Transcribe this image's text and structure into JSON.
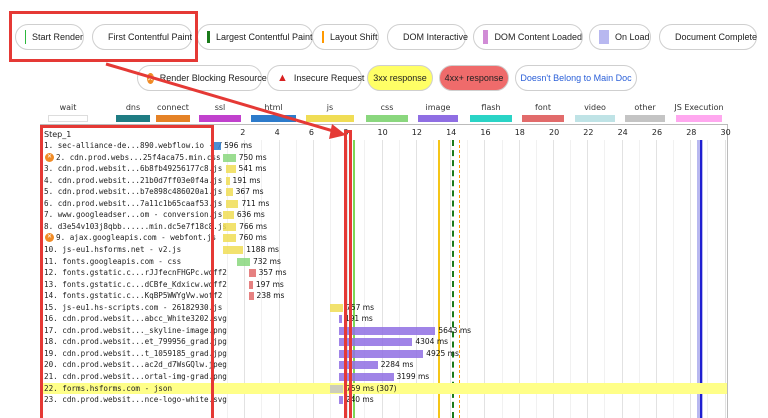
{
  "filters_row1": [
    {
      "label": "Start Render",
      "marker": "bar",
      "color": "#2db83d"
    },
    {
      "label": "First Contentful Paint",
      "marker": "bar",
      "color": "#7ed957"
    },
    {
      "label": "Largest Contentful Paint",
      "marker": "dashed",
      "color": "#1a7a1a"
    },
    {
      "label": "Layout Shift",
      "marker": "dashed",
      "color": "#ff9900"
    },
    {
      "label": "DOM Interactive",
      "marker": "bar",
      "color": "#f5c518"
    },
    {
      "label": "DOM Content Loaded",
      "marker": "box",
      "color": "#d18cd6"
    },
    {
      "label": "On Load",
      "marker": "box",
      "color": "#b8b8f0"
    },
    {
      "label": "Document Complete",
      "marker": "bar",
      "color": "#1f1fd1"
    }
  ],
  "filters_row2": [
    {
      "label": "Render Blocking Resource",
      "marker": "block-icon"
    },
    {
      "label": "Insecure Request",
      "marker": "warning-icon"
    },
    {
      "label": "3xx response",
      "bg": "#ffff66"
    },
    {
      "label": "4xx+ response",
      "bg": "#ef6b6b"
    },
    {
      "label": "Doesn't Belong to Main Doc",
      "color": "#2a5fd8"
    }
  ],
  "legend": [
    {
      "label": "wait",
      "color": "#ffffff"
    },
    {
      "label": "dns",
      "color": "#1f7c83"
    },
    {
      "label": "connect",
      "color": "#e58226"
    },
    {
      "label": "ssl",
      "color": "#c141cd"
    },
    {
      "label": "html",
      "color": "#2d7bcb"
    },
    {
      "label": "js",
      "color": "#f0dd55"
    },
    {
      "label": "css",
      "color": "#8ad77e"
    },
    {
      "label": "image",
      "color": "#8f6ee3"
    },
    {
      "label": "flash",
      "color": "#2ad4c6"
    },
    {
      "label": "font",
      "color": "#e26b6b"
    },
    {
      "label": "video",
      "color": "#bfe3e6"
    },
    {
      "label": "other",
      "color": "#c4c4c4"
    },
    {
      "label": "JS Execution",
      "color": "#ffa8ef"
    }
  ],
  "step_label": "Step_1",
  "ticks": [
    "2",
    "4",
    "6",
    "8",
    "10",
    "12",
    "14",
    "16",
    "18",
    "20",
    "22",
    "24",
    "26",
    "28",
    "30"
  ],
  "rows": [
    {
      "label": "1. sec-alliance-de...890.webflow.io - /",
      "start": 0.05,
      "dur": 0.6,
      "ms": "596 ms",
      "color": "#2d7bcb",
      "blocking": false
    },
    {
      "label": "2. cdn.prod.webs...25f4aca75.min.css",
      "start": 0.75,
      "dur": 0.75,
      "ms": "750 ms",
      "color": "#8ad77e",
      "blocking": true
    },
    {
      "label": "3. cdn.prod.websit...6b8fb49256177c8.js",
      "start": 0.95,
      "dur": 0.54,
      "ms": "541 ms",
      "color": "#f0dd55",
      "blocking": false
    },
    {
      "label": "4. cdn.prod.websit...21b0d7ff03e0f4a.js",
      "start": 0.95,
      "dur": 0.19,
      "ms": "191 ms",
      "color": "#f0dd55",
      "blocking": false
    },
    {
      "label": "5. cdn.prod.websit...b7e898c486020a1.js",
      "start": 0.95,
      "dur": 0.37,
      "ms": "367 ms",
      "color": "#f0dd55",
      "blocking": false
    },
    {
      "label": "6. cdn.prod.websit...7a11c1b65caaf53.js",
      "start": 0.95,
      "dur": 0.71,
      "ms": "711 ms",
      "color": "#f0dd55",
      "blocking": false
    },
    {
      "label": "7. www.googleadser...om - conversion.js",
      "start": 0.75,
      "dur": 0.64,
      "ms": "636 ms",
      "color": "#f0dd55",
      "blocking": false
    },
    {
      "label": "8. d3e54v103j8qbb......min.dc5e7f18c8.js",
      "start": 0.75,
      "dur": 0.77,
      "ms": "766 ms",
      "color": "#f0dd55",
      "blocking": false
    },
    {
      "label": "9. ajax.googleapis.com - webfont.js",
      "start": 0.75,
      "dur": 0.76,
      "ms": "760 ms",
      "color": "#f0dd55",
      "blocking": true
    },
    {
      "label": "10. js-eu1.hsforms.net - v2.js",
      "start": 0.75,
      "dur": 1.19,
      "ms": "1188 ms",
      "color": "#f0dd55",
      "blocking": false
    },
    {
      "label": "11. fonts.googleapis.com - css",
      "start": 1.6,
      "dur": 0.73,
      "ms": "732 ms",
      "color": "#8ad77e",
      "blocking": false
    },
    {
      "label": "12. fonts.gstatic.c...rJJfecnFHGPc.woff2",
      "start": 2.3,
      "dur": 0.36,
      "ms": "357 ms",
      "color": "#e26b6b",
      "blocking": false
    },
    {
      "label": "13. fonts.gstatic.c...dCBfe_Kdxicw.woff2",
      "start": 2.3,
      "dur": 0.2,
      "ms": "197 ms",
      "color": "#e26b6b",
      "blocking": false
    },
    {
      "label": "14. fonts.gstatic.c...KqBP5WWYgVw.woff2",
      "start": 2.3,
      "dur": 0.24,
      "ms": "238 ms",
      "color": "#e26b6b",
      "blocking": false
    },
    {
      "label": "15. js-eu1.hs-scripts.com - 26182930.js",
      "start": 7.0,
      "dur": 0.76,
      "ms": "757 ms",
      "color": "#f0dd55",
      "blocking": false
    },
    {
      "label": "16. cdn.prod.websit...abcc_White3202.svg",
      "start": 7.5,
      "dur": 0.19,
      "ms": "191 ms",
      "color": "#8f6ee3",
      "blocking": false
    },
    {
      "label": "17. cdn.prod.websit..._skyline-image.png",
      "start": 7.5,
      "dur": 5.64,
      "ms": "5643 ms",
      "color": "#8f6ee3",
      "blocking": false
    },
    {
      "label": "18. cdn.prod.websit...et_799956_grad.jpg",
      "start": 7.5,
      "dur": 4.3,
      "ms": "4304 ms",
      "color": "#8f6ee3",
      "blocking": false
    },
    {
      "label": "19. cdn.prod.websit...t_1059185_grad.jpg",
      "start": 7.5,
      "dur": 4.93,
      "ms": "4925 ms",
      "color": "#8f6ee3",
      "blocking": false
    },
    {
      "label": "20. cdn.prod.websit...ac2d_d7WsGQlw.jpeg",
      "start": 7.5,
      "dur": 2.28,
      "ms": "2284 ms",
      "color": "#8f6ee3",
      "blocking": false
    },
    {
      "label": "21. cdn.prod.websit...ortal-img-grad.png",
      "start": 7.5,
      "dur": 3.2,
      "ms": "3199 ms",
      "color": "#8f6ee3",
      "blocking": false
    },
    {
      "label": "22. forms.hsforms.com - json",
      "start": 7.0,
      "dur": 0.76,
      "ms": "759 ms (307)",
      "color": "#c4c4c4",
      "blocking": false,
      "highlight": "#ffff88"
    },
    {
      "label": "23. cdn.prod.websit...nce-logo-white.svg",
      "start": 7.5,
      "dur": 0.24,
      "ms": "240 ms",
      "color": "#8f6ee3",
      "blocking": false
    }
  ]
}
